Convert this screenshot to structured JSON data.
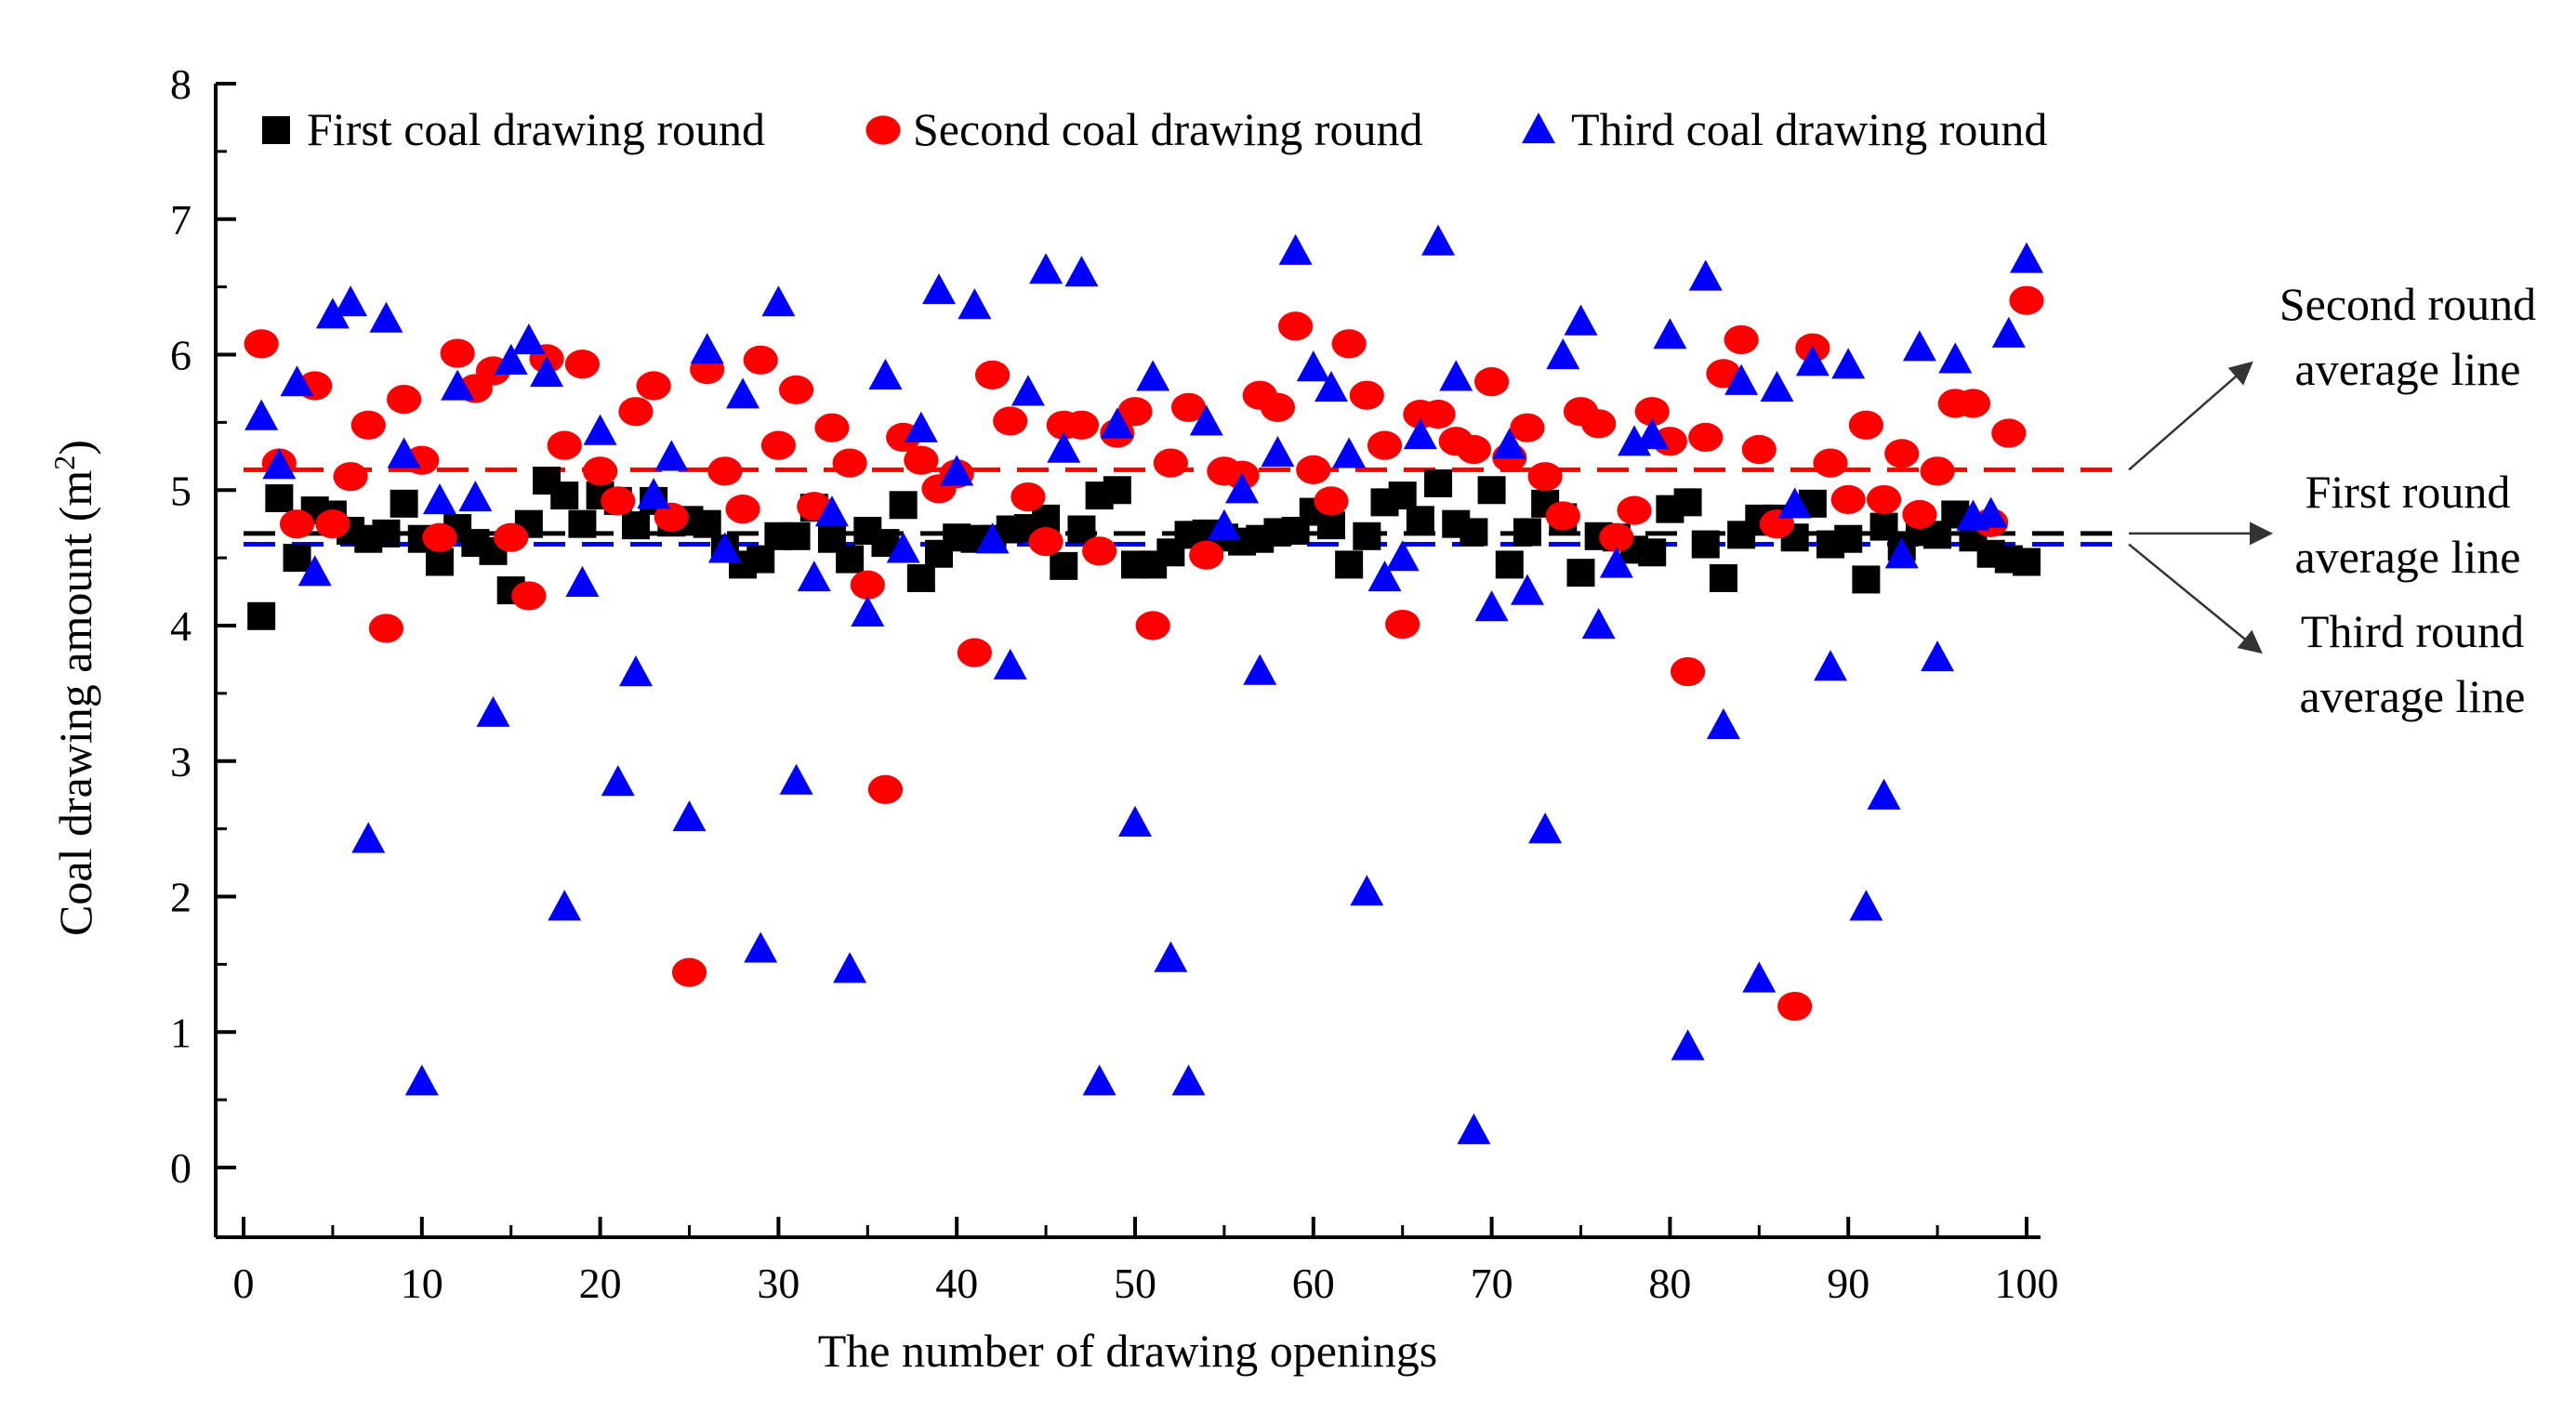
{
  "chart_data": {
    "type": "scatter",
    "xlabel": "The number of drawing openings",
    "ylabel_main": "Coal drawing amount (m",
    "ylabel_sup": "2",
    "ylabel_close": ")",
    "xlim": [
      -1,
      101
    ],
    "ylim": [
      -0.5,
      8
    ],
    "xticks": [
      0,
      10,
      20,
      30,
      40,
      50,
      60,
      70,
      80,
      90,
      100
    ],
    "yticks": [
      0,
      1,
      2,
      3,
      4,
      5,
      6,
      7,
      8
    ],
    "grid": false,
    "legend_position": "top",
    "series": [
      {
        "name": "First coal drawing round",
        "marker": "square",
        "color": "#000000",
        "average": 4.68,
        "x": [
          1,
          2,
          3,
          4,
          5,
          6,
          7,
          8,
          9,
          10,
          11,
          12,
          13,
          14,
          15,
          16,
          17,
          18,
          19,
          20,
          21,
          22,
          23,
          24,
          25,
          26,
          27,
          28,
          29,
          30,
          31,
          32,
          33,
          34,
          35,
          36,
          37,
          38,
          39,
          40,
          41,
          42,
          43,
          44,
          45,
          46,
          47,
          48,
          49,
          50,
          51,
          52,
          53,
          54,
          55,
          56,
          57,
          58,
          59,
          60,
          61,
          62,
          63,
          64,
          65,
          66,
          67,
          68,
          69,
          70,
          71,
          72,
          73,
          74,
          75,
          76,
          77,
          78,
          79,
          80,
          81,
          82,
          83,
          84,
          85,
          86,
          87,
          88,
          89,
          90,
          91,
          92,
          93,
          94,
          95,
          96,
          97,
          98,
          99,
          100
        ],
        "y": [
          4.07,
          4.94,
          4.5,
          4.85,
          4.82,
          4.7,
          4.64,
          4.68,
          4.9,
          4.64,
          4.47,
          4.72,
          4.61,
          4.55,
          4.26,
          4.75,
          5.07,
          4.96,
          4.75,
          4.96,
          4.92,
          4.74,
          4.92,
          4.76,
          4.78,
          4.75,
          4.57,
          4.45,
          4.49,
          4.66,
          4.66,
          4.87,
          4.64,
          4.49,
          4.7,
          4.61,
          4.89,
          4.35,
          4.53,
          4.65,
          4.64,
          4.64,
          4.71,
          4.72,
          4.79,
          4.44,
          4.71,
          4.96,
          5.0,
          4.45,
          4.45,
          4.54,
          4.67,
          4.68,
          4.65,
          4.62,
          4.64,
          4.69,
          4.7,
          4.84,
          4.74,
          4.45,
          4.66,
          4.91,
          4.96,
          4.78,
          5.05,
          4.75,
          4.69,
          5.0,
          4.45,
          4.69,
          4.9,
          4.8,
          4.39,
          4.66,
          4.65,
          4.56,
          4.54,
          4.86,
          4.91,
          4.6,
          4.35,
          4.67,
          4.79,
          4.79,
          4.65,
          4.9,
          4.6,
          4.64,
          4.34,
          4.73,
          4.58,
          4.69,
          4.67,
          4.82,
          4.65,
          4.53,
          4.49,
          4.47
        ]
      },
      {
        "name": "Second coal drawing round",
        "marker": "circle",
        "color": "#ff0000",
        "average": 5.15,
        "x": [
          1,
          2,
          3,
          4,
          5,
          6,
          7,
          8,
          9,
          10,
          11,
          12,
          13,
          14,
          15,
          16,
          17,
          18,
          19,
          20,
          21,
          22,
          23,
          24,
          25,
          26,
          27,
          28,
          29,
          30,
          31,
          32,
          33,
          34,
          35,
          36,
          37,
          38,
          39,
          40,
          41,
          42,
          43,
          44,
          45,
          46,
          47,
          48,
          49,
          50,
          51,
          52,
          53,
          54,
          55,
          56,
          57,
          58,
          59,
          60,
          61,
          62,
          63,
          64,
          65,
          66,
          67,
          68,
          69,
          70,
          71,
          72,
          73,
          74,
          75,
          76,
          77,
          78,
          79,
          80,
          81,
          82,
          83,
          84,
          85,
          86,
          87,
          88,
          89,
          90,
          91,
          92,
          93,
          94,
          95,
          96,
          97,
          98,
          99,
          100
        ],
        "y": [
          6.08,
          5.2,
          4.75,
          5.77,
          4.75,
          5.1,
          5.48,
          3.98,
          5.67,
          5.22,
          4.65,
          6.01,
          5.75,
          5.88,
          4.65,
          4.22,
          5.97,
          5.33,
          5.93,
          5.14,
          4.92,
          5.58,
          5.77,
          4.8,
          1.44,
          5.89,
          5.14,
          4.86,
          5.96,
          5.33,
          5.74,
          4.88,
          5.46,
          5.2,
          4.3,
          2.79,
          5.39,
          5.22,
          5.01,
          5.12,
          3.8,
          5.85,
          5.51,
          4.95,
          4.62,
          5.48,
          5.48,
          4.55,
          5.42,
          5.58,
          4.0,
          5.2,
          5.61,
          4.52,
          5.14,
          5.11,
          5.7,
          5.61,
          6.21,
          5.15,
          4.92,
          6.08,
          5.7,
          5.33,
          4.01,
          5.56,
          5.56,
          5.36,
          5.3,
          5.8,
          5.24,
          5.46,
          5.1,
          4.81,
          5.58,
          5.49,
          4.65,
          4.85,
          5.58,
          5.36,
          3.66,
          5.39,
          5.86,
          6.11,
          5.3,
          4.75,
          1.19,
          6.05,
          5.2,
          4.93,
          5.48,
          4.93,
          5.27,
          4.82,
          5.14,
          5.64,
          5.64,
          4.76,
          5.42,
          6.4
        ]
      },
      {
        "name": "Third coal drawing round",
        "marker": "triangle",
        "color": "#0000ff",
        "average": 4.6,
        "x": [
          1,
          2,
          3,
          4,
          5,
          6,
          7,
          8,
          9,
          10,
          11,
          12,
          13,
          14,
          15,
          16,
          17,
          18,
          19,
          20,
          21,
          22,
          23,
          24,
          25,
          26,
          27,
          28,
          29,
          30,
          31,
          32,
          33,
          34,
          35,
          36,
          37,
          38,
          39,
          40,
          41,
          42,
          43,
          44,
          45,
          46,
          47,
          48,
          49,
          50,
          51,
          52,
          53,
          54,
          55,
          56,
          57,
          58,
          59,
          60,
          61,
          62,
          63,
          64,
          65,
          66,
          67,
          68,
          69,
          70,
          71,
          72,
          73,
          74,
          75,
          76,
          77,
          78,
          79,
          80,
          81,
          82,
          83,
          84,
          85,
          86,
          87,
          88,
          89,
          90,
          91,
          92,
          93,
          94,
          95,
          96,
          97,
          98,
          99,
          100
        ],
        "y": [
          5.54,
          5.18,
          5.79,
          4.39,
          6.29,
          6.38,
          2.42,
          6.26,
          5.26,
          0.63,
          4.92,
          5.76,
          4.94,
          3.35,
          5.95,
          6.1,
          5.86,
          1.92,
          4.31,
          5.43,
          2.84,
          3.65,
          4.96,
          5.24,
          2.58,
          6.03,
          4.56,
          5.7,
          1.61,
          6.38,
          2.85,
          4.35,
          4.83,
          1.46,
          4.09,
          5.84,
          4.56,
          5.45,
          6.47,
          5.13,
          6.36,
          4.63,
          3.7,
          5.72,
          6.62,
          5.3,
          6.6,
          0.63,
          5.48,
          2.54,
          5.83,
          1.54,
          0.63,
          5.5,
          4.73,
          5.0,
          3.66,
          5.27,
          6.76,
          5.9,
          5.75,
          5.26,
          2.03,
          4.35,
          4.5,
          5.4,
          6.83,
          5.83,
          0.27,
          4.13,
          5.33,
          4.25,
          2.49,
          5.99,
          6.24,
          4.0,
          4.45,
          5.35,
          5.4,
          6.14,
          0.89,
          6.57,
          3.26,
          5.8,
          1.39,
          5.75,
          4.89,
          5.94,
          3.69,
          5.92,
          1.92,
          2.74,
          4.52,
          6.05,
          3.76,
          5.96,
          4.8,
          4.82,
          6.15,
          6.7
        ]
      }
    ],
    "annotations": [
      {
        "series_index": 1,
        "lines": [
          "Second round",
          "average line"
        ]
      },
      {
        "series_index": 0,
        "lines": [
          "First round",
          "average line"
        ]
      },
      {
        "series_index": 2,
        "lines": [
          "Third round",
          "average line"
        ]
      }
    ]
  }
}
